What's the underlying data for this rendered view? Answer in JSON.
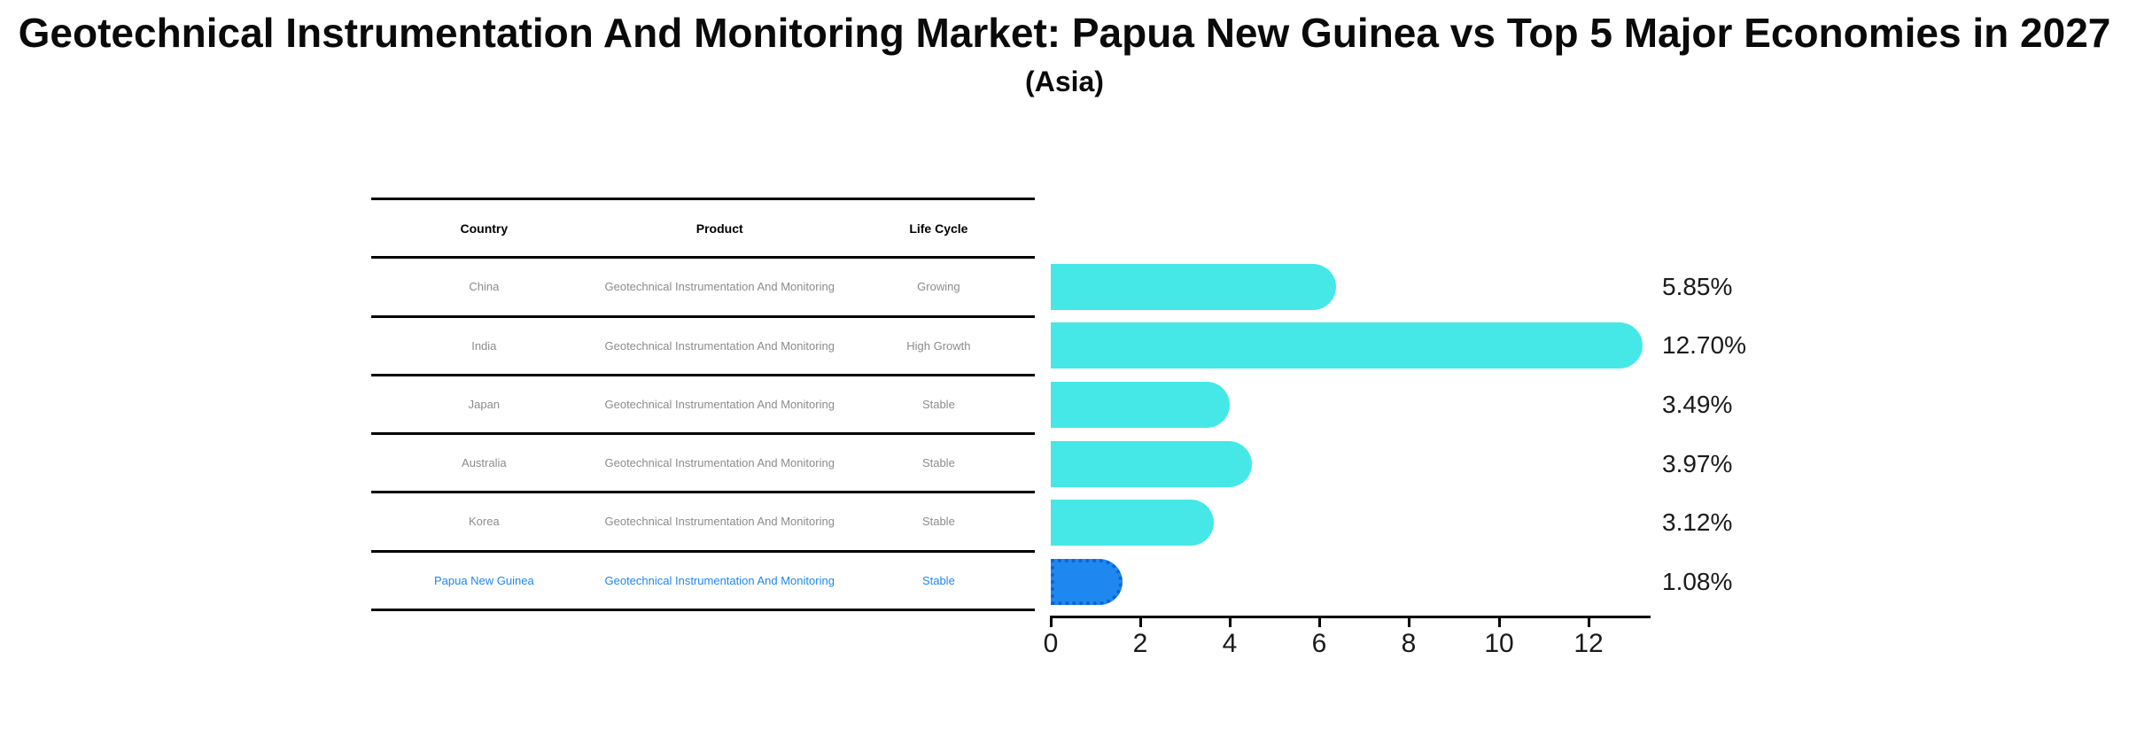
{
  "title": "Geotechnical Instrumentation And Monitoring Market: Papua New Guinea vs Top 5 Major Economies in 2027",
  "subtitle": "(Asia)",
  "table": {
    "headers": [
      "Country",
      "Product",
      "Life Cycle"
    ],
    "rows": [
      {
        "country": "China",
        "product": "Geotechnical Instrumentation And Monitoring",
        "life_cycle": "Growing"
      },
      {
        "country": "India",
        "product": "Geotechnical Instrumentation And Monitoring",
        "life_cycle": "High Growth"
      },
      {
        "country": "Japan",
        "product": "Geotechnical Instrumentation And Monitoring",
        "life_cycle": "Stable"
      },
      {
        "country": "Australia",
        "product": "Geotechnical Instrumentation And Monitoring",
        "life_cycle": "Stable"
      },
      {
        "country": "Korea",
        "product": "Geotechnical Instrumentation And Monitoring",
        "life_cycle": "Stable"
      },
      {
        "country": "Papua New Guinea",
        "product": "Geotechnical Instrumentation And Monitoring",
        "life_cycle": "Stable"
      }
    ]
  },
  "chart_data": {
    "type": "bar",
    "orientation": "horizontal",
    "title": "Geotechnical Instrumentation And Monitoring Market: Papua New Guinea vs Top 5 Major Economies in 2027 (Asia)",
    "categories": [
      "China",
      "India",
      "Japan",
      "Australia",
      "Korea",
      "Papua New Guinea"
    ],
    "values": [
      5.85,
      12.7,
      3.49,
      3.97,
      3.12,
      1.08
    ],
    "value_labels": [
      "5.85%",
      "12.70%",
      "3.49%",
      "3.97%",
      "3.12%",
      "1.08%"
    ],
    "x_ticks": [
      0,
      2,
      4,
      6,
      8,
      10,
      12
    ],
    "xlim": [
      0,
      13.4
    ],
    "grid": false,
    "legend": false,
    "bar_color": "#45e8e6",
    "highlight_color": "#1e87f0",
    "highlight_index": 5
  }
}
